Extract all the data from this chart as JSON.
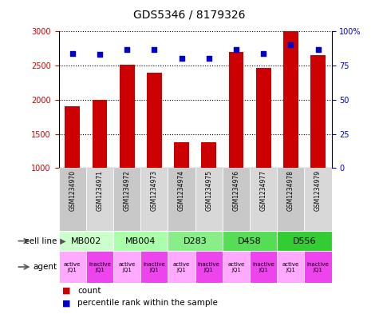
{
  "title": "GDS5346 / 8179326",
  "samples": [
    "GSM1234970",
    "GSM1234971",
    "GSM1234972",
    "GSM1234973",
    "GSM1234974",
    "GSM1234975",
    "GSM1234976",
    "GSM1234977",
    "GSM1234978",
    "GSM1234979"
  ],
  "counts": [
    1900,
    2000,
    2510,
    2400,
    1380,
    1380,
    2700,
    2460,
    3000,
    2650
  ],
  "percentiles": [
    84,
    83,
    87,
    87,
    80,
    80,
    87,
    84,
    90,
    87
  ],
  "bar_color": "#cc0000",
  "dot_color": "#0000cc",
  "ylim_left": [
    1000,
    3000
  ],
  "ylim_right": [
    0,
    100
  ],
  "yticks_left": [
    1000,
    1500,
    2000,
    2500,
    3000
  ],
  "yticks_right": [
    0,
    25,
    50,
    75,
    100
  ],
  "cell_lines": [
    {
      "label": "MB002",
      "cols": [
        0,
        1
      ],
      "color": "#ccffcc"
    },
    {
      "label": "MB004",
      "cols": [
        2,
        3
      ],
      "color": "#aaffaa"
    },
    {
      "label": "D283",
      "cols": [
        4,
        5
      ],
      "color": "#88ee88"
    },
    {
      "label": "D458",
      "cols": [
        6,
        7
      ],
      "color": "#55dd55"
    },
    {
      "label": "D556",
      "cols": [
        8,
        9
      ],
      "color": "#33cc33"
    }
  ],
  "agent_active_color": "#ffaaff",
  "agent_inactive_color": "#ee44ee",
  "tick_label_color_left": "#cc0000",
  "tick_label_color_right": "#0000cc",
  "background_color": "#ffffff",
  "sample_col_color_even": "#c8c8c8",
  "sample_col_color_odd": "#d8d8d8"
}
